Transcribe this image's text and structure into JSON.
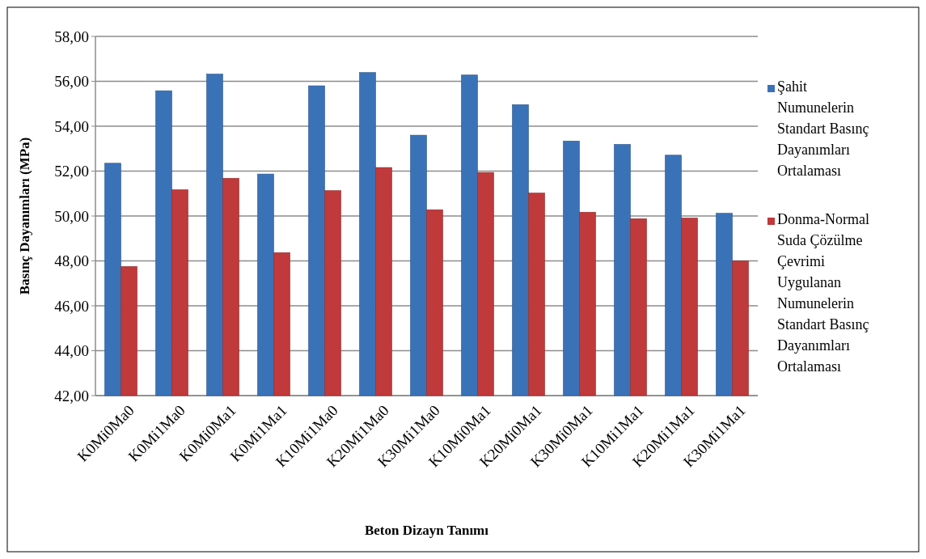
{
  "chart_data": {
    "type": "bar",
    "xlabel": "Beton Dizayn Tanımı",
    "ylabel": "Basınç Dayanımları (MPa)",
    "categories": [
      "K0Mi0Ma0",
      "K0Mi1Ma0",
      "K0Mi0Ma1",
      "K0Mi1Ma1",
      "K10Mi1Ma0",
      "K20Mi1Ma0",
      "K30Mi1Ma0",
      "K10Mi0Ma1",
      "K20Mi0Ma1",
      "K30Mi0Ma1",
      "K10Mi1Ma1",
      "K20Mi1Ma1",
      "K30Mi1Ma1"
    ],
    "series": [
      {
        "name": "Şahit Numunelerin Standart Basınç Dayanımları Ortalaması",
        "color": "#3a72b8",
        "values": [
          52.35,
          55.58,
          56.32,
          51.87,
          55.8,
          56.39,
          53.6,
          56.28,
          54.96,
          53.34,
          53.19,
          52.71,
          50.12
        ]
      },
      {
        "name": "Donma-Normal Suda Çözülme Çevrimi Uygulanan Numunelerin Standart Basınç Dayanımları Ortalaması",
        "color": "#c0393b",
        "values": [
          47.75,
          51.17,
          51.68,
          48.37,
          51.13,
          52.16,
          50.28,
          51.94,
          51.02,
          50.17,
          49.88,
          49.91,
          48.0
        ]
      }
    ],
    "ylim": [
      42,
      58
    ],
    "yticks": [
      {
        "value": 42,
        "label": "42,00"
      },
      {
        "value": 44,
        "label": "44,00"
      },
      {
        "value": 46,
        "label": "46,00"
      },
      {
        "value": 48,
        "label": "48,00"
      },
      {
        "value": 50,
        "label": "50,00"
      },
      {
        "value": 52,
        "label": "52,00"
      },
      {
        "value": 54,
        "label": "54,00"
      },
      {
        "value": 56,
        "label": "56,00"
      },
      {
        "value": 58,
        "label": "58,00"
      }
    ],
    "grid": "y",
    "legend": "right"
  }
}
